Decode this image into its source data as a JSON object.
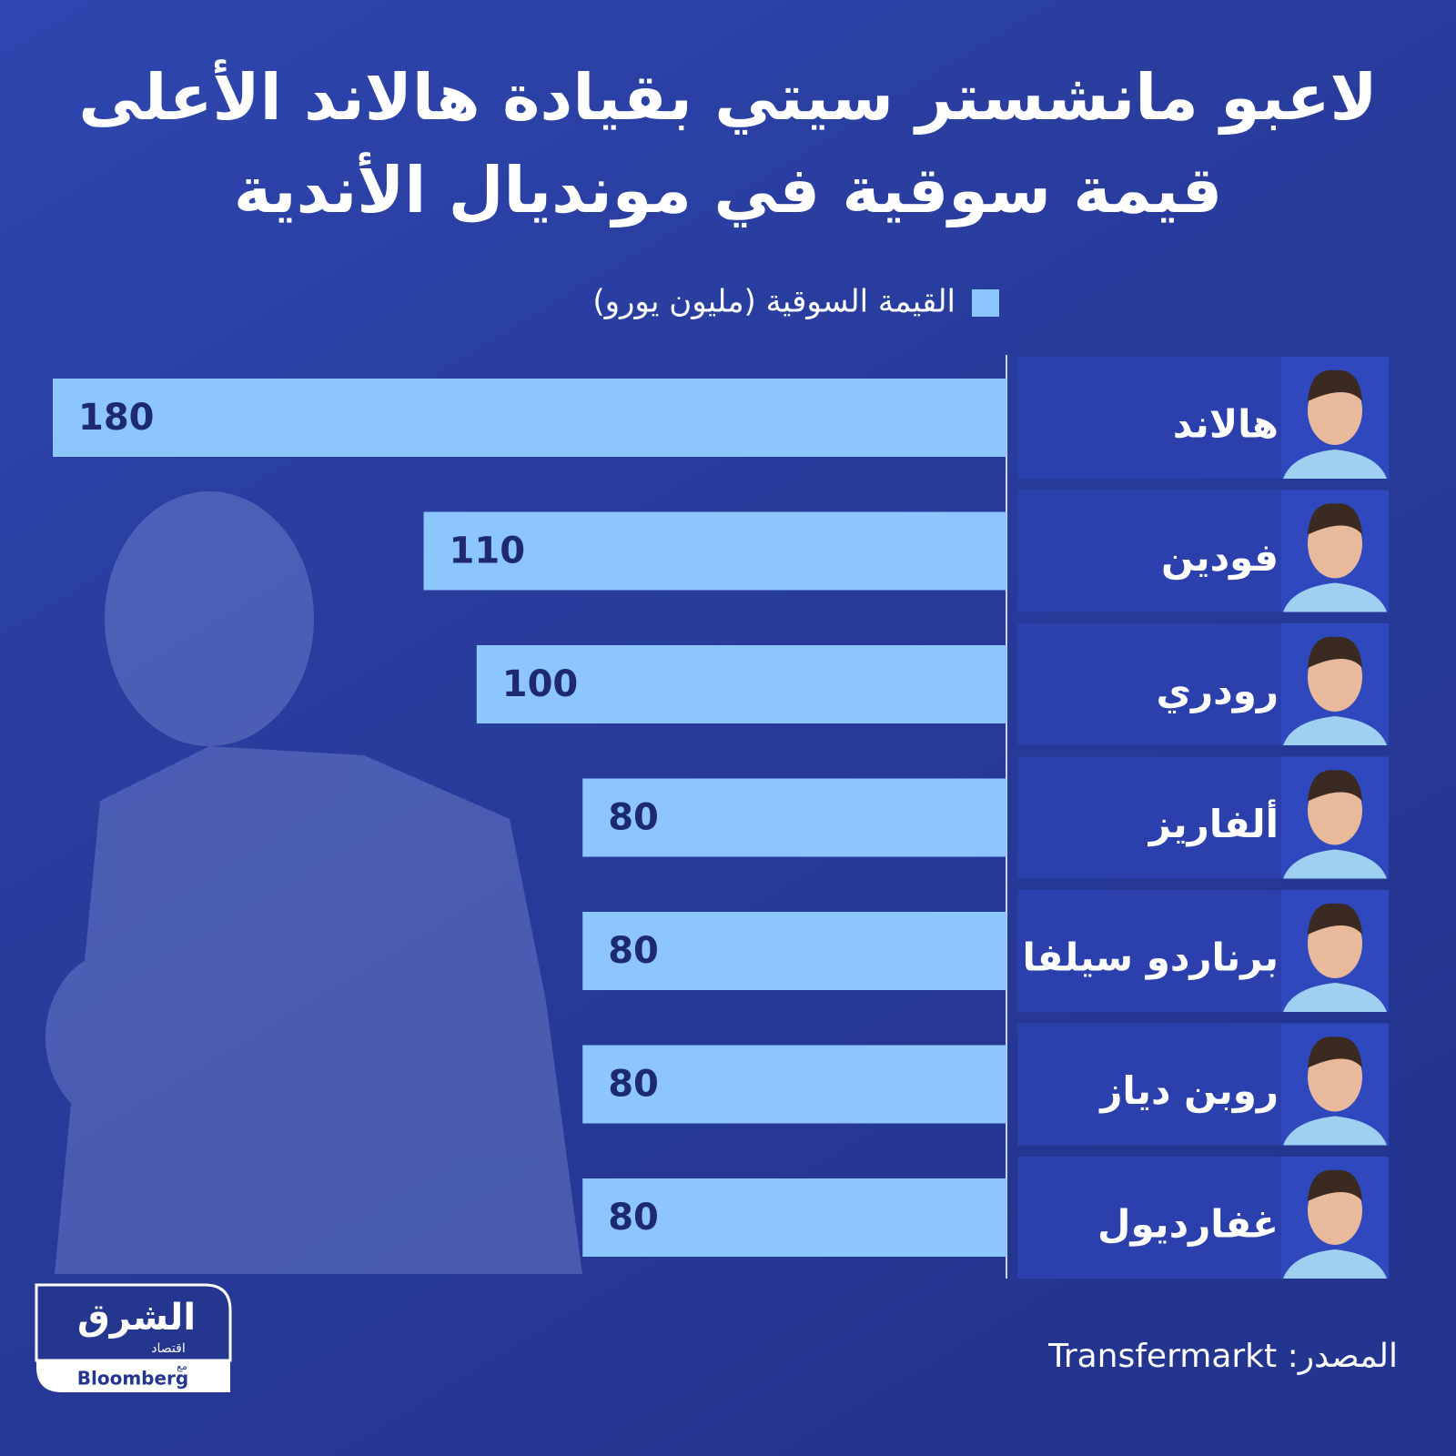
{
  "chart_data": {
    "type": "hbar",
    "title": [
      "لاعبو مانشستر سيتي بقيادة هالاند الأعلى",
      "قيمة سوقية في مونديال الأندية"
    ],
    "categories": [
      "هالاند",
      "فودين",
      "رودري",
      "ألفاريز",
      "برناردو  سيلفا",
      "روبن دياز",
      "غفارديول"
    ],
    "series": [
      {
        "name": "القيمة السوقية (مليون يورو)",
        "color": "#8dc5fd",
        "values": [
          180,
          110,
          100,
          80,
          80,
          80,
          80
        ]
      }
    ],
    "xlim": [
      0,
      180
    ],
    "source": "المصدر: Transfermarkt"
  },
  "logo": {
    "name": "الشرق",
    "sub": "اقتصاد",
    "with": "مع",
    "partner": "Bloomberg"
  }
}
